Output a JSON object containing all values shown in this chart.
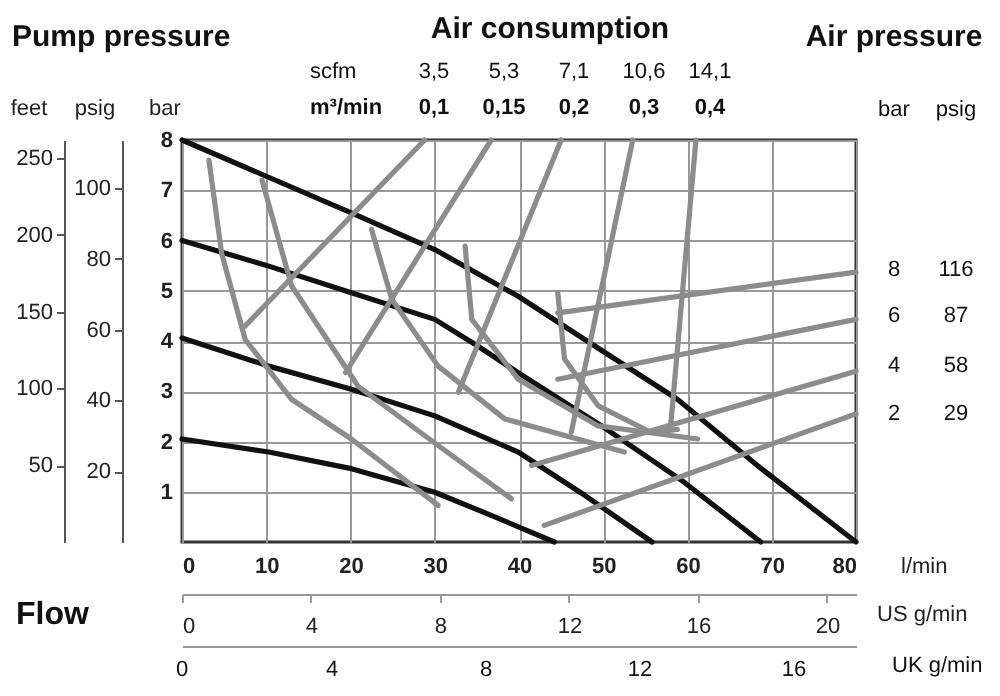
{
  "chart_data": {
    "type": "line",
    "annotations": [
      "Pump pressure",
      "Air consumption",
      "Air pressure",
      "scfm",
      "m³/min",
      "3,5",
      "5,3",
      "7,1",
      "10,6",
      "14,1",
      "0,1",
      "0,15",
      "0,2",
      "0,3",
      "0,4",
      "bar",
      "psig",
      "8",
      "6",
      "4",
      "2",
      "116",
      "87",
      "58",
      "29",
      "Flow",
      "UK g/min",
      "0",
      "4",
      "8",
      "12",
      "16"
    ],
    "xlabel": "l/min",
    "ylabel": "bar",
    "y2label": "psig",
    "y3label": "feet",
    "x2label": "US g/min",
    "xlim": [
      0,
      80
    ],
    "xticks": [
      0,
      10,
      20,
      30,
      40,
      50,
      60,
      70,
      80
    ],
    "x2lim": [
      0,
      20.9
    ],
    "x2ticks": [
      0,
      4,
      8,
      12,
      16,
      20
    ],
    "ylim": [
      0,
      8
    ],
    "yticks": [
      1,
      2,
      3,
      4,
      5,
      6,
      7,
      8
    ],
    "y2lim": [
      0,
      113.6
    ],
    "y2ticks": [
      20,
      40,
      60,
      80,
      100
    ],
    "y3lim": [
      0,
      261.8
    ],
    "y3ticks": [
      50,
      100,
      150,
      200,
      250
    ],
    "grid": true,
    "series": [
      {
        "color": "#111111",
        "x": [
          0,
          20.1,
          30,
          39.9,
          47.8,
          58.8,
          68.3,
          80
        ],
        "values": [
          8,
          6.55,
          5.82,
          4.89,
          4.03,
          2.84,
          1.52,
          0
        ]
      },
      {
        "color": "#111111",
        "x": [
          0,
          10.3,
          20.1,
          30,
          35.1,
          39.9,
          49.8,
          59.6,
          68.7
        ],
        "values": [
          6,
          5.49,
          4.96,
          4.43,
          3.9,
          3.37,
          2.31,
          1.19,
          0
        ]
      },
      {
        "color": "#111111",
        "x": [
          0,
          10.3,
          20.1,
          30,
          39.9,
          47.8,
          55.8
        ],
        "values": [
          4.06,
          3.5,
          3.04,
          2.51,
          1.79,
          0.93,
          0
        ]
      },
      {
        "color": "#111111",
        "x": [
          0,
          10.3,
          20.1,
          30,
          36.7,
          44.2
        ],
        "values": [
          2.05,
          1.79,
          1.46,
          0.99,
          0.53,
          0
        ]
      },
      {
        "color": "#8c8c8c",
        "x": [
          3.2,
          4.7,
          7.5,
          13,
          20.1,
          30.4
        ],
        "values": [
          7.6,
          5.75,
          4.03,
          2.84,
          2.05,
          0.73
        ]
      },
      {
        "color": "#8c8c8c",
        "x": [
          9.5,
          13,
          20.9,
          30.4,
          39.1
        ],
        "values": [
          7.2,
          5.1,
          3.1,
          1.92,
          0.86
        ]
      },
      {
        "color": "#8c8c8c",
        "x": [
          22.5,
          24.9,
          30.4,
          38.3,
          52.5
        ],
        "values": [
          6.22,
          4.83,
          3.5,
          2.45,
          1.79
        ]
      },
      {
        "color": "#8c8c8c",
        "x": [
          33.6,
          34.4,
          39.9,
          49.4,
          61.2
        ],
        "values": [
          5.89,
          4.43,
          3.24,
          2.31,
          2.05
        ]
      },
      {
        "color": "#8c8c8c",
        "x": [
          44.6,
          45.4,
          49.4,
          55.7,
          58.8
        ],
        "values": [
          4.96,
          3.64,
          2.71,
          2.18,
          2.24
        ]
      },
      {
        "color": "#8c8c8c",
        "x": [
          28.8,
          7.5
        ],
        "values": [
          8,
          4.3
        ]
      },
      {
        "color": "#8c8c8c",
        "x": [
          36.7,
          19.4
        ],
        "values": [
          8,
          3.37
        ]
      },
      {
        "color": "#8c8c8c",
        "x": [
          45,
          32.8
        ],
        "values": [
          8,
          2.98
        ]
      },
      {
        "color": "#8c8c8c",
        "x": [
          53.5,
          46.2
        ],
        "values": [
          8,
          2.18
        ]
      },
      {
        "color": "#8c8c8c",
        "x": [
          61,
          58
        ],
        "values": [
          8,
          2.31
        ]
      },
      {
        "color": "#8c8c8c",
        "x": [
          80,
          44.6
        ],
        "values": [
          5.37,
          4.56
        ]
      },
      {
        "color": "#8c8c8c",
        "x": [
          80,
          44.6
        ],
        "values": [
          4.43,
          3.24
        ]
      },
      {
        "color": "#8c8c8c",
        "x": [
          80,
          41.5
        ],
        "values": [
          3.4,
          1.52
        ]
      },
      {
        "color": "#8c8c8c",
        "x": [
          80,
          43
        ],
        "values": [
          2.55,
          0.33
        ]
      }
    ]
  }
}
